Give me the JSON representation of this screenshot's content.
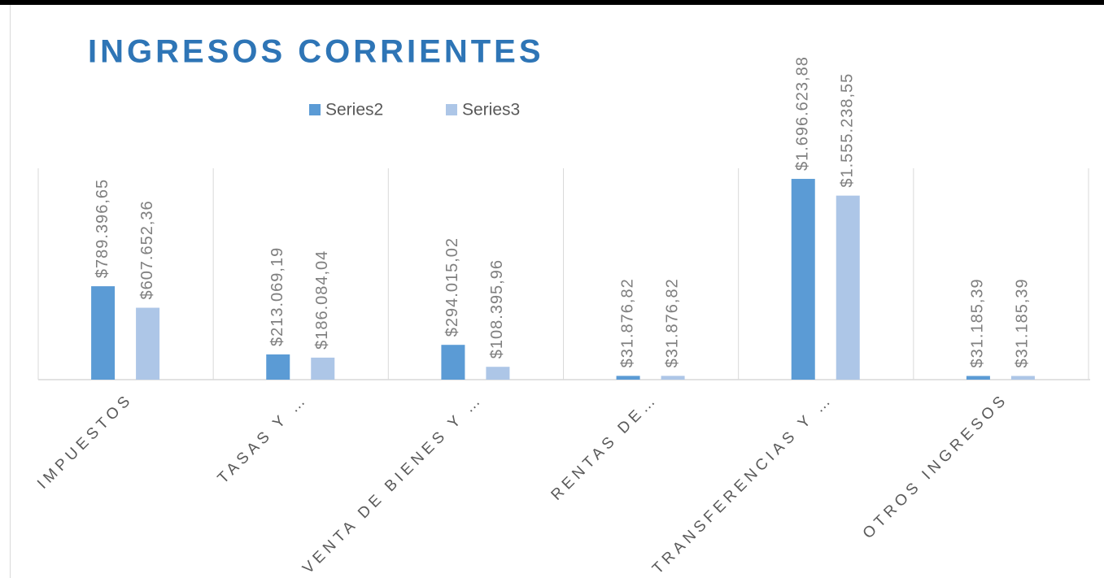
{
  "chart_data": {
    "type": "bar",
    "title": "INGRESOS CORRIENTES",
    "categories": [
      "IMPUESTOS",
      "TASAS Y …",
      "VENTA DE BIENES Y …",
      "RENTAS DE…",
      "TRANSFERENCIAS Y …",
      "OTROS INGRESOS"
    ],
    "series": [
      {
        "name": "Series2",
        "color": "#5b9bd5",
        "values": [
          789396.65,
          213069.19,
          294015.02,
          31876.82,
          1696623.88,
          31185.39
        ],
        "value_labels": [
          "$789.396,65",
          "$213.069,19",
          "$294.015,02",
          "$31.876,82",
          "$1.696.623,88",
          "$31.185,39"
        ]
      },
      {
        "name": "Series3",
        "color": "#adc6e7",
        "values": [
          607652.36,
          186084.04,
          108395.96,
          31876.82,
          1555238.55,
          31185.39
        ],
        "value_labels": [
          "$607.652,36",
          "$186.084,04",
          "$108.395,96",
          "$31.876,82",
          "$1.555.238,55",
          "$31.185,39"
        ]
      }
    ],
    "ylim": [
      0,
      1800000
    ],
    "legend": "top"
  }
}
